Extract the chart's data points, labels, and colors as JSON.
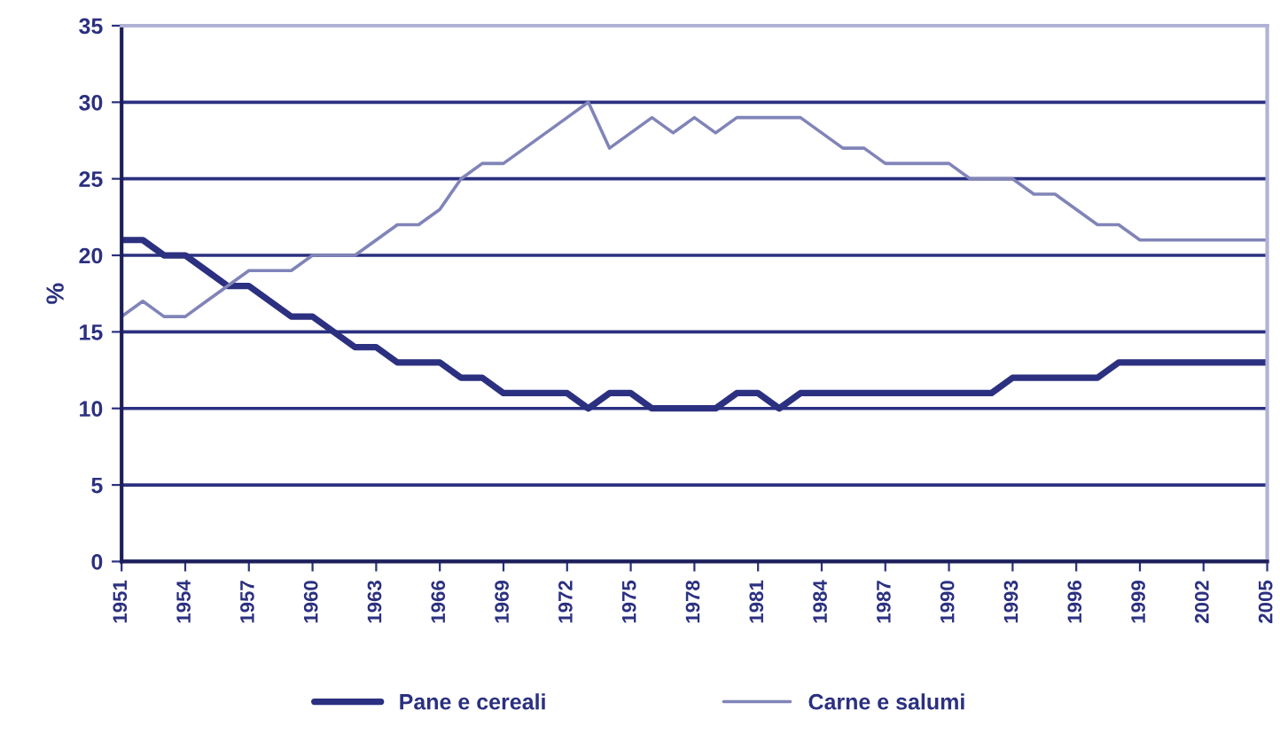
{
  "chart_data": {
    "type": "line",
    "ylabel": "%",
    "x": [
      1951,
      1952,
      1953,
      1954,
      1955,
      1956,
      1957,
      1958,
      1959,
      1960,
      1961,
      1962,
      1963,
      1964,
      1965,
      1966,
      1967,
      1968,
      1969,
      1970,
      1971,
      1972,
      1973,
      1974,
      1975,
      1976,
      1977,
      1978,
      1979,
      1980,
      1981,
      1982,
      1983,
      1984,
      1985,
      1986,
      1987,
      1988,
      1989,
      1990,
      1991,
      1992,
      1993,
      1994,
      1995,
      1996,
      1997,
      1998,
      1999,
      2000,
      2001,
      2002,
      2003,
      2004,
      2005
    ],
    "series": [
      {
        "name": "Pane e cereali",
        "color": "#2b3080",
        "values": [
          21,
          21,
          20,
          20,
          19,
          18,
          18,
          17,
          16,
          16,
          15,
          14,
          14,
          13,
          13,
          13,
          12,
          12,
          11,
          11,
          11,
          11,
          10,
          11,
          11,
          10,
          10,
          10,
          10,
          11,
          11,
          10,
          11,
          11,
          11,
          11,
          11,
          11,
          11,
          11,
          11,
          11,
          12,
          12,
          12,
          12,
          12,
          13,
          13,
          13,
          13,
          13,
          13,
          13,
          13
        ]
      },
      {
        "name": "Carne e salumi",
        "color": "#8084b8",
        "values": [
          16,
          17,
          16,
          16,
          17,
          18,
          19,
          19,
          19,
          20,
          20,
          20,
          21,
          22,
          22,
          23,
          25,
          26,
          26,
          27,
          28,
          29,
          30,
          27,
          28,
          29,
          28,
          29,
          28,
          29,
          29,
          29,
          29,
          28,
          27,
          27,
          26,
          26,
          26,
          26,
          25,
          25,
          25,
          24,
          24,
          23,
          22,
          22,
          21,
          21,
          21,
          21,
          21,
          21,
          21
        ]
      }
    ],
    "xlim": [
      1951,
      2005
    ],
    "xticks": [
      1951,
      1954,
      1957,
      1960,
      1963,
      1966,
      1969,
      1972,
      1975,
      1978,
      1981,
      1984,
      1987,
      1990,
      1993,
      1996,
      1999,
      2002,
      2005
    ],
    "ylim": [
      0,
      35
    ],
    "yticks": [
      0,
      5,
      10,
      15,
      20,
      25,
      30,
      35
    ],
    "grid": "y",
    "legend": "bottom"
  }
}
